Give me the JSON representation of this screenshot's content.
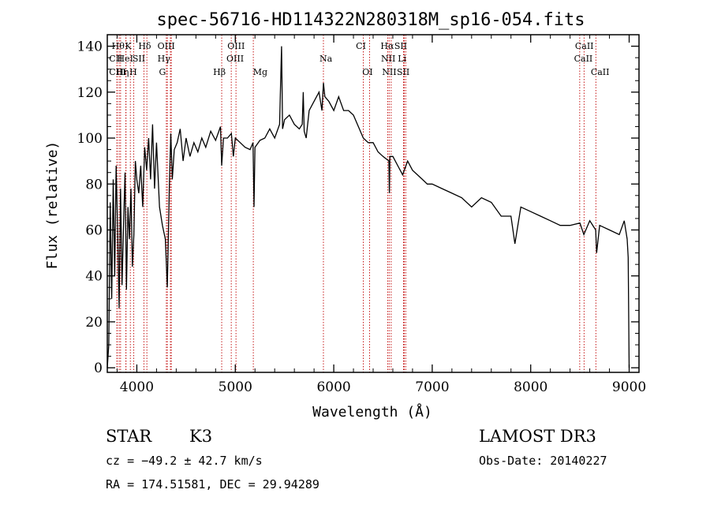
{
  "chart_data": {
    "type": "line",
    "title": "spec-56716-HD114322N280318M_sp16-054.fits",
    "xlabel": "Wavelength (Å)",
    "ylabel": "Flux (relative)",
    "xlim": [
      3700,
      9100
    ],
    "ylim": [
      -2,
      145
    ],
    "x_ticks": [
      4000,
      5000,
      6000,
      7000,
      8000,
      9000
    ],
    "y_ticks": [
      0,
      20,
      40,
      60,
      80,
      100,
      120,
      140
    ],
    "grid": false,
    "series": [
      {
        "name": "flux",
        "x": [
          3700,
          3715,
          3730,
          3745,
          3760,
          3775,
          3790,
          3805,
          3820,
          3835,
          3850,
          3865,
          3880,
          3895,
          3910,
          3925,
          3940,
          3955,
          3970,
          3985,
          4000,
          4020,
          4040,
          4060,
          4080,
          4100,
          4120,
          4140,
          4160,
          4180,
          4200,
          4230,
          4260,
          4290,
          4310,
          4330,
          4345,
          4360,
          4380,
          4410,
          4440,
          4470,
          4500,
          4540,
          4580,
          4620,
          4660,
          4700,
          4750,
          4800,
          4850,
          4862,
          4880,
          4920,
          4960,
          4980,
          5000,
          5050,
          5100,
          5150,
          5180,
          5190,
          5200,
          5250,
          5300,
          5350,
          5400,
          5450,
          5470,
          5480,
          5500,
          5550,
          5600,
          5650,
          5680,
          5690,
          5700,
          5720,
          5750,
          5800,
          5850,
          5880,
          5895,
          5910,
          5950,
          6000,
          6050,
          6100,
          6150,
          6200,
          6250,
          6300,
          6350,
          6400,
          6450,
          6500,
          6560,
          6565,
          6570,
          6600,
          6650,
          6700,
          6750,
          6800,
          6850,
          6900,
          6950,
          7000,
          7100,
          7200,
          7300,
          7400,
          7500,
          7600,
          7700,
          7800,
          7840,
          7900,
          8000,
          8100,
          8200,
          8300,
          8400,
          8500,
          8540,
          8600,
          8660,
          8670,
          8700,
          8800,
          8900,
          8950,
          8980,
          8990,
          9000
        ],
        "values": [
          0,
          10,
          72,
          30,
          82,
          40,
          88,
          60,
          26,
          78,
          36,
          62,
          85,
          34,
          70,
          56,
          78,
          44,
          58,
          90,
          82,
          76,
          88,
          70,
          96,
          86,
          100,
          82,
          106,
          78,
          98,
          70,
          62,
          56,
          35,
          78,
          102,
          82,
          95,
          98,
          104,
          90,
          100,
          92,
          98,
          94,
          100,
          96,
          103,
          99,
          105,
          88,
          100,
          100,
          102,
          92,
          100,
          98,
          96,
          95,
          98,
          70,
          96,
          99,
          100,
          104,
          100,
          106,
          140,
          104,
          108,
          110,
          106,
          104,
          106,
          120,
          103,
          100,
          112,
          116,
          120,
          112,
          124,
          118,
          116,
          112,
          118,
          112,
          112,
          110,
          105,
          100,
          98,
          98,
          94,
          92,
          90,
          76,
          92,
          92,
          88,
          84,
          90,
          86,
          84,
          82,
          80,
          80,
          78,
          76,
          74,
          70,
          74,
          72,
          66,
          66,
          54,
          70,
          68,
          66,
          64,
          62,
          62,
          63,
          58,
          64,
          60,
          50,
          62,
          60,
          58,
          64,
          56,
          48,
          0
        ]
      }
    ],
    "reference_lines": [
      {
        "label": "Hθ",
        "wavelength": 3798
      },
      {
        "label": "CII",
        "wavelength": 3800
      },
      {
        "label": "CIII",
        "wavelength": 3820
      },
      {
        "label": "Hη",
        "wavelength": 3835
      },
      {
        "label": "K",
        "wavelength": 3889
      },
      {
        "label": "HeI",
        "wavelength": 3890
      },
      {
        "label": "H",
        "wavelength": 3934
      },
      {
        "label": "Hε",
        "wavelength": 3969
      },
      {
        "label": "SII",
        "wavelength": 4072
      },
      {
        "label": "Hδ",
        "wavelength": 4102
      },
      {
        "label": "OII",
        "wavelength": 4300
      },
      {
        "label": "OII",
        "wavelength": 4310
      },
      {
        "label": "Hγ",
        "wavelength": 4341
      },
      {
        "label": "G",
        "wavelength": 4350
      },
      {
        "label": "Hβ",
        "wavelength": 4862
      },
      {
        "label": "OIII",
        "wavelength": 4959
      },
      {
        "label": "OIII",
        "wavelength": 5007
      },
      {
        "label": "Mg",
        "wavelength": 5183
      },
      {
        "label": "Na",
        "wavelength": 5895
      },
      {
        "label": "OI",
        "wavelength": 6300
      },
      {
        "label": "OI",
        "wavelength": 6364
      },
      {
        "label": "NII",
        "wavelength": 6548
      },
      {
        "label": "Hα",
        "wavelength": 6563
      },
      {
        "label": "NII",
        "wavelength": 6583
      },
      {
        "label": "SII",
        "wavelength": 6716
      },
      {
        "label": "Li",
        "wavelength": 6708
      },
      {
        "label": "SII",
        "wavelength": 6731
      },
      {
        "label": "CaII",
        "wavelength": 8498
      },
      {
        "label": "CaII",
        "wavelength": 8542
      },
      {
        "label": "CaII",
        "wavelength": 8662
      }
    ]
  },
  "labels": {
    "row1": [
      {
        "text": "Hθ",
        "wavelength": 3745
      },
      {
        "text": "K",
        "wavelength": 3880
      },
      {
        "text": "Hδ",
        "wavelength": 4015
      },
      {
        "text": "OIII",
        "wavelength": 4210
      },
      {
        "text": "OIII",
        "wavelength": 4920
      },
      {
        "text": "CI",
        "wavelength": 6225
      },
      {
        "text": "Hα",
        "wavelength": 6475
      },
      {
        "text": "SII",
        "wavelength": 6615
      },
      {
        "text": "CaII",
        "wavelength": 8450
      }
    ],
    "row2": [
      {
        "text": "CII",
        "wavelength": 3718
      },
      {
        "text": "HeI",
        "wavelength": 3800
      },
      {
        "text": "SII",
        "wavelength": 3955
      },
      {
        "text": "Hγ",
        "wavelength": 4210
      },
      {
        "text": "OIII",
        "wavelength": 4910
      },
      {
        "text": "Na",
        "wavelength": 5855
      },
      {
        "text": "NII",
        "wavelength": 6480
      },
      {
        "text": "Li",
        "wavelength": 6650
      },
      {
        "text": "CaII",
        "wavelength": 8440
      }
    ],
    "row3": [
      {
        "text": "CIII",
        "wavelength": 3718
      },
      {
        "text": "Hη",
        "wavelength": 3790
      },
      {
        "text": "H",
        "wavelength": 3925
      },
      {
        "text": "G",
        "wavelength": 4225
      },
      {
        "text": "Hβ",
        "wavelength": 4775
      },
      {
        "text": "Mg",
        "wavelength": 5180
      },
      {
        "text": "OI",
        "wavelength": 6290
      },
      {
        "text": "NII",
        "wavelength": 6490
      },
      {
        "text": "SII",
        "wavelength": 6640
      },
      {
        "text": "CaII",
        "wavelength": 8610
      }
    ]
  },
  "info": {
    "class": "STAR",
    "subclass": "K3",
    "survey": "LAMOST DR3",
    "cz": "cz = −49.2 ± 42.7 km/s",
    "obs_date": "Obs-Date: 20140227",
    "coords": "RA = 174.51581, DEC =  29.94289"
  }
}
